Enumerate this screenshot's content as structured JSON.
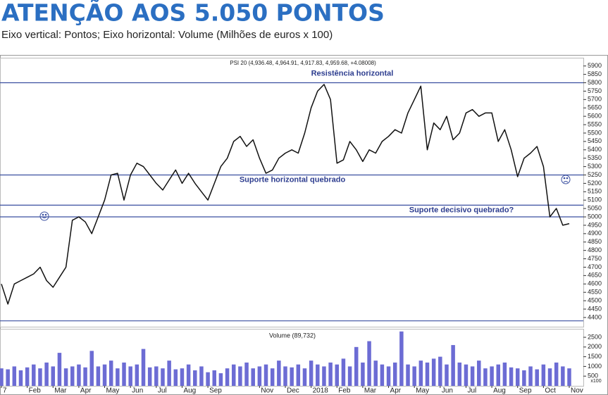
{
  "chart_data": {
    "type": "stock",
    "title": "ATENÇÃO AOS 5.050 PONTOS",
    "subtitle": "Eixo vertical: Pontos; Eixo horizontal: Volume (Milhões de euros x 100)",
    "price_label": "PSI 20 (4,936.48, 4,964.91, 4,917.83, 4,959.68, +4.08008)",
    "volume_label": "Volume (89,732)",
    "volume_unit": "x100",
    "annotations": [
      {
        "text": "Resistência horizontal",
        "value": 5800
      },
      {
        "text": "Suporte horizontal quebrado",
        "value": 5250
      },
      {
        "text": "Suporte decisivo quebrado?",
        "value": 5070
      }
    ],
    "levels": [
      5800,
      5250,
      5070,
      5000,
      4380
    ],
    "line_color": "#111111",
    "level_color": "#3a4fa0",
    "volume_color": "#6c6cd4",
    "categories": [
      "7",
      null,
      null,
      null,
      "Feb",
      null,
      null,
      null,
      "Mar",
      null,
      null,
      null,
      "Apr",
      null,
      null,
      null,
      "May",
      null,
      null,
      null,
      "Jun",
      null,
      null,
      null,
      "Jul",
      null,
      null,
      null,
      "Aug",
      null,
      null,
      null,
      "Sep",
      null,
      null,
      null,
      null,
      null,
      null,
      null,
      "Nov",
      null,
      null,
      null,
      "Dec",
      null,
      null,
      null,
      "2018",
      null,
      null,
      null,
      "Feb",
      null,
      null,
      null,
      "Mar",
      null,
      null,
      null,
      "Apr",
      null,
      null,
      null,
      "May",
      null,
      null,
      null,
      "Jun",
      null,
      null,
      null,
      "Jul",
      null,
      null,
      null,
      "Aug",
      null,
      null,
      null,
      "Sep",
      null,
      null,
      null,
      "Oct",
      null,
      null,
      null,
      "Nov"
    ],
    "values": [
      4600,
      4480,
      4600,
      4620,
      4640,
      4660,
      4700,
      4620,
      4580,
      4640,
      4700,
      4980,
      5000,
      4970,
      4900,
      5000,
      5100,
      5250,
      5260,
      5100,
      5250,
      5320,
      5300,
      5250,
      5200,
      5160,
      5220,
      5280,
      5200,
      5260,
      5200,
      5150,
      5100,
      5200,
      5300,
      5350,
      5450,
      5480,
      5420,
      5460,
      5350,
      5260,
      5280,
      5350,
      5380,
      5400,
      5380,
      5500,
      5650,
      5750,
      5790,
      5700,
      5320,
      5340,
      5450,
      5400,
      5330,
      5400,
      5380,
      5450,
      5480,
      5520,
      5500,
      5620,
      5700,
      5780,
      5400,
      5560,
      5520,
      5600,
      5460,
      5500,
      5620,
      5640,
      5600,
      5620,
      5620,
      5450,
      5520,
      5400,
      5240,
      5350,
      5380,
      5420,
      5300,
      5000,
      5050,
      4950,
      4960
    ],
    "volume": [
      900,
      850,
      1000,
      800,
      950,
      1100,
      900,
      1200,
      1000,
      1700,
      900,
      1000,
      1100,
      950,
      1800,
      1000,
      1100,
      1300,
      900,
      1200,
      1000,
      1100,
      1900,
      950,
      1000,
      900,
      1300,
      850,
      900,
      1100,
      800,
      1000,
      700,
      800,
      650,
      900,
      1100,
      1000,
      1200,
      900,
      1000,
      1100,
      900,
      1300,
      1000,
      950,
      1100,
      900,
      1300,
      1100,
      1000,
      1200,
      1100,
      1400,
      1000,
      2000,
      1200,
      2300,
      1300,
      1100,
      1000,
      1200,
      2800,
      1100,
      1000,
      1300,
      1200,
      1400,
      1500,
      1100,
      2100,
      1200,
      1100,
      1000,
      1300,
      900,
      1000,
      1100,
      1200,
      950,
      900,
      800,
      1000,
      850,
      1100,
      900,
      1200,
      1000,
      900
    ],
    "ylim": [
      4345,
      5945
    ],
    "yticks": [
      5900,
      5850,
      5800,
      5750,
      5700,
      5650,
      5600,
      5550,
      5500,
      5450,
      5400,
      5350,
      5300,
      5250,
      5200,
      5150,
      5100,
      5050,
      5000,
      4950,
      4900,
      4850,
      4800,
      4750,
      4700,
      4650,
      4600,
      4550,
      4500,
      4450,
      4400
    ],
    "vol_ylim": [
      0,
      2900
    ],
    "vol_yticks": [
      500,
      1000,
      1500,
      2000,
      2500
    ]
  }
}
